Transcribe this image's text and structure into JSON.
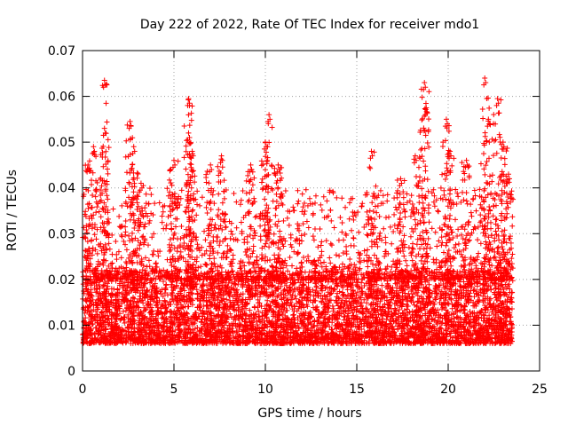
{
  "chart_data": {
    "type": "scatter",
    "title": "Day 222 of 2022, Rate Of TEC Index for receiver mdo1",
    "xlabel": "GPS time / hours",
    "ylabel": "ROTI / TECUs",
    "xlim": [
      0,
      25
    ],
    "ylim": [
      0,
      0.07
    ],
    "xticks": [
      "0",
      "5",
      "10",
      "15",
      "20",
      "25"
    ],
    "yticks": [
      "0",
      "0.01",
      "0.02",
      "0.03",
      "0.04",
      "0.05",
      "0.06",
      "0.07"
    ],
    "grid": true,
    "legend": "none",
    "marker": "plus",
    "color": "#ff0000",
    "data_x_range": [
      0,
      23.5
    ],
    "dense_band": [
      0.004,
      0.02
    ],
    "spikes": [
      {
        "x": 0.3,
        "y": 0.045
      },
      {
        "x": 0.6,
        "y": 0.049
      },
      {
        "x": 1.2,
        "y": 0.0635
      },
      {
        "x": 1.2,
        "y": 0.053
      },
      {
        "x": 2.6,
        "y": 0.0545
      },
      {
        "x": 2.8,
        "y": 0.049
      },
      {
        "x": 3.2,
        "y": 0.041
      },
      {
        "x": 5.0,
        "y": 0.046
      },
      {
        "x": 5.8,
        "y": 0.0595
      },
      {
        "x": 5.8,
        "y": 0.052
      },
      {
        "x": 6.0,
        "y": 0.048
      },
      {
        "x": 7.0,
        "y": 0.045
      },
      {
        "x": 7.6,
        "y": 0.047
      },
      {
        "x": 9.2,
        "y": 0.045
      },
      {
        "x": 10.2,
        "y": 0.056
      },
      {
        "x": 10.0,
        "y": 0.05
      },
      {
        "x": 10.7,
        "y": 0.045
      },
      {
        "x": 15.8,
        "y": 0.048
      },
      {
        "x": 17.4,
        "y": 0.042
      },
      {
        "x": 18.2,
        "y": 0.047
      },
      {
        "x": 18.7,
        "y": 0.063
      },
      {
        "x": 18.8,
        "y": 0.0575
      },
      {
        "x": 19.9,
        "y": 0.055
      },
      {
        "x": 20.1,
        "y": 0.048
      },
      {
        "x": 21.0,
        "y": 0.046
      },
      {
        "x": 22.0,
        "y": 0.064
      },
      {
        "x": 22.2,
        "y": 0.055
      },
      {
        "x": 22.7,
        "y": 0.0595
      },
      {
        "x": 23.0,
        "y": 0.05
      },
      {
        "x": 23.3,
        "y": 0.043
      }
    ]
  }
}
